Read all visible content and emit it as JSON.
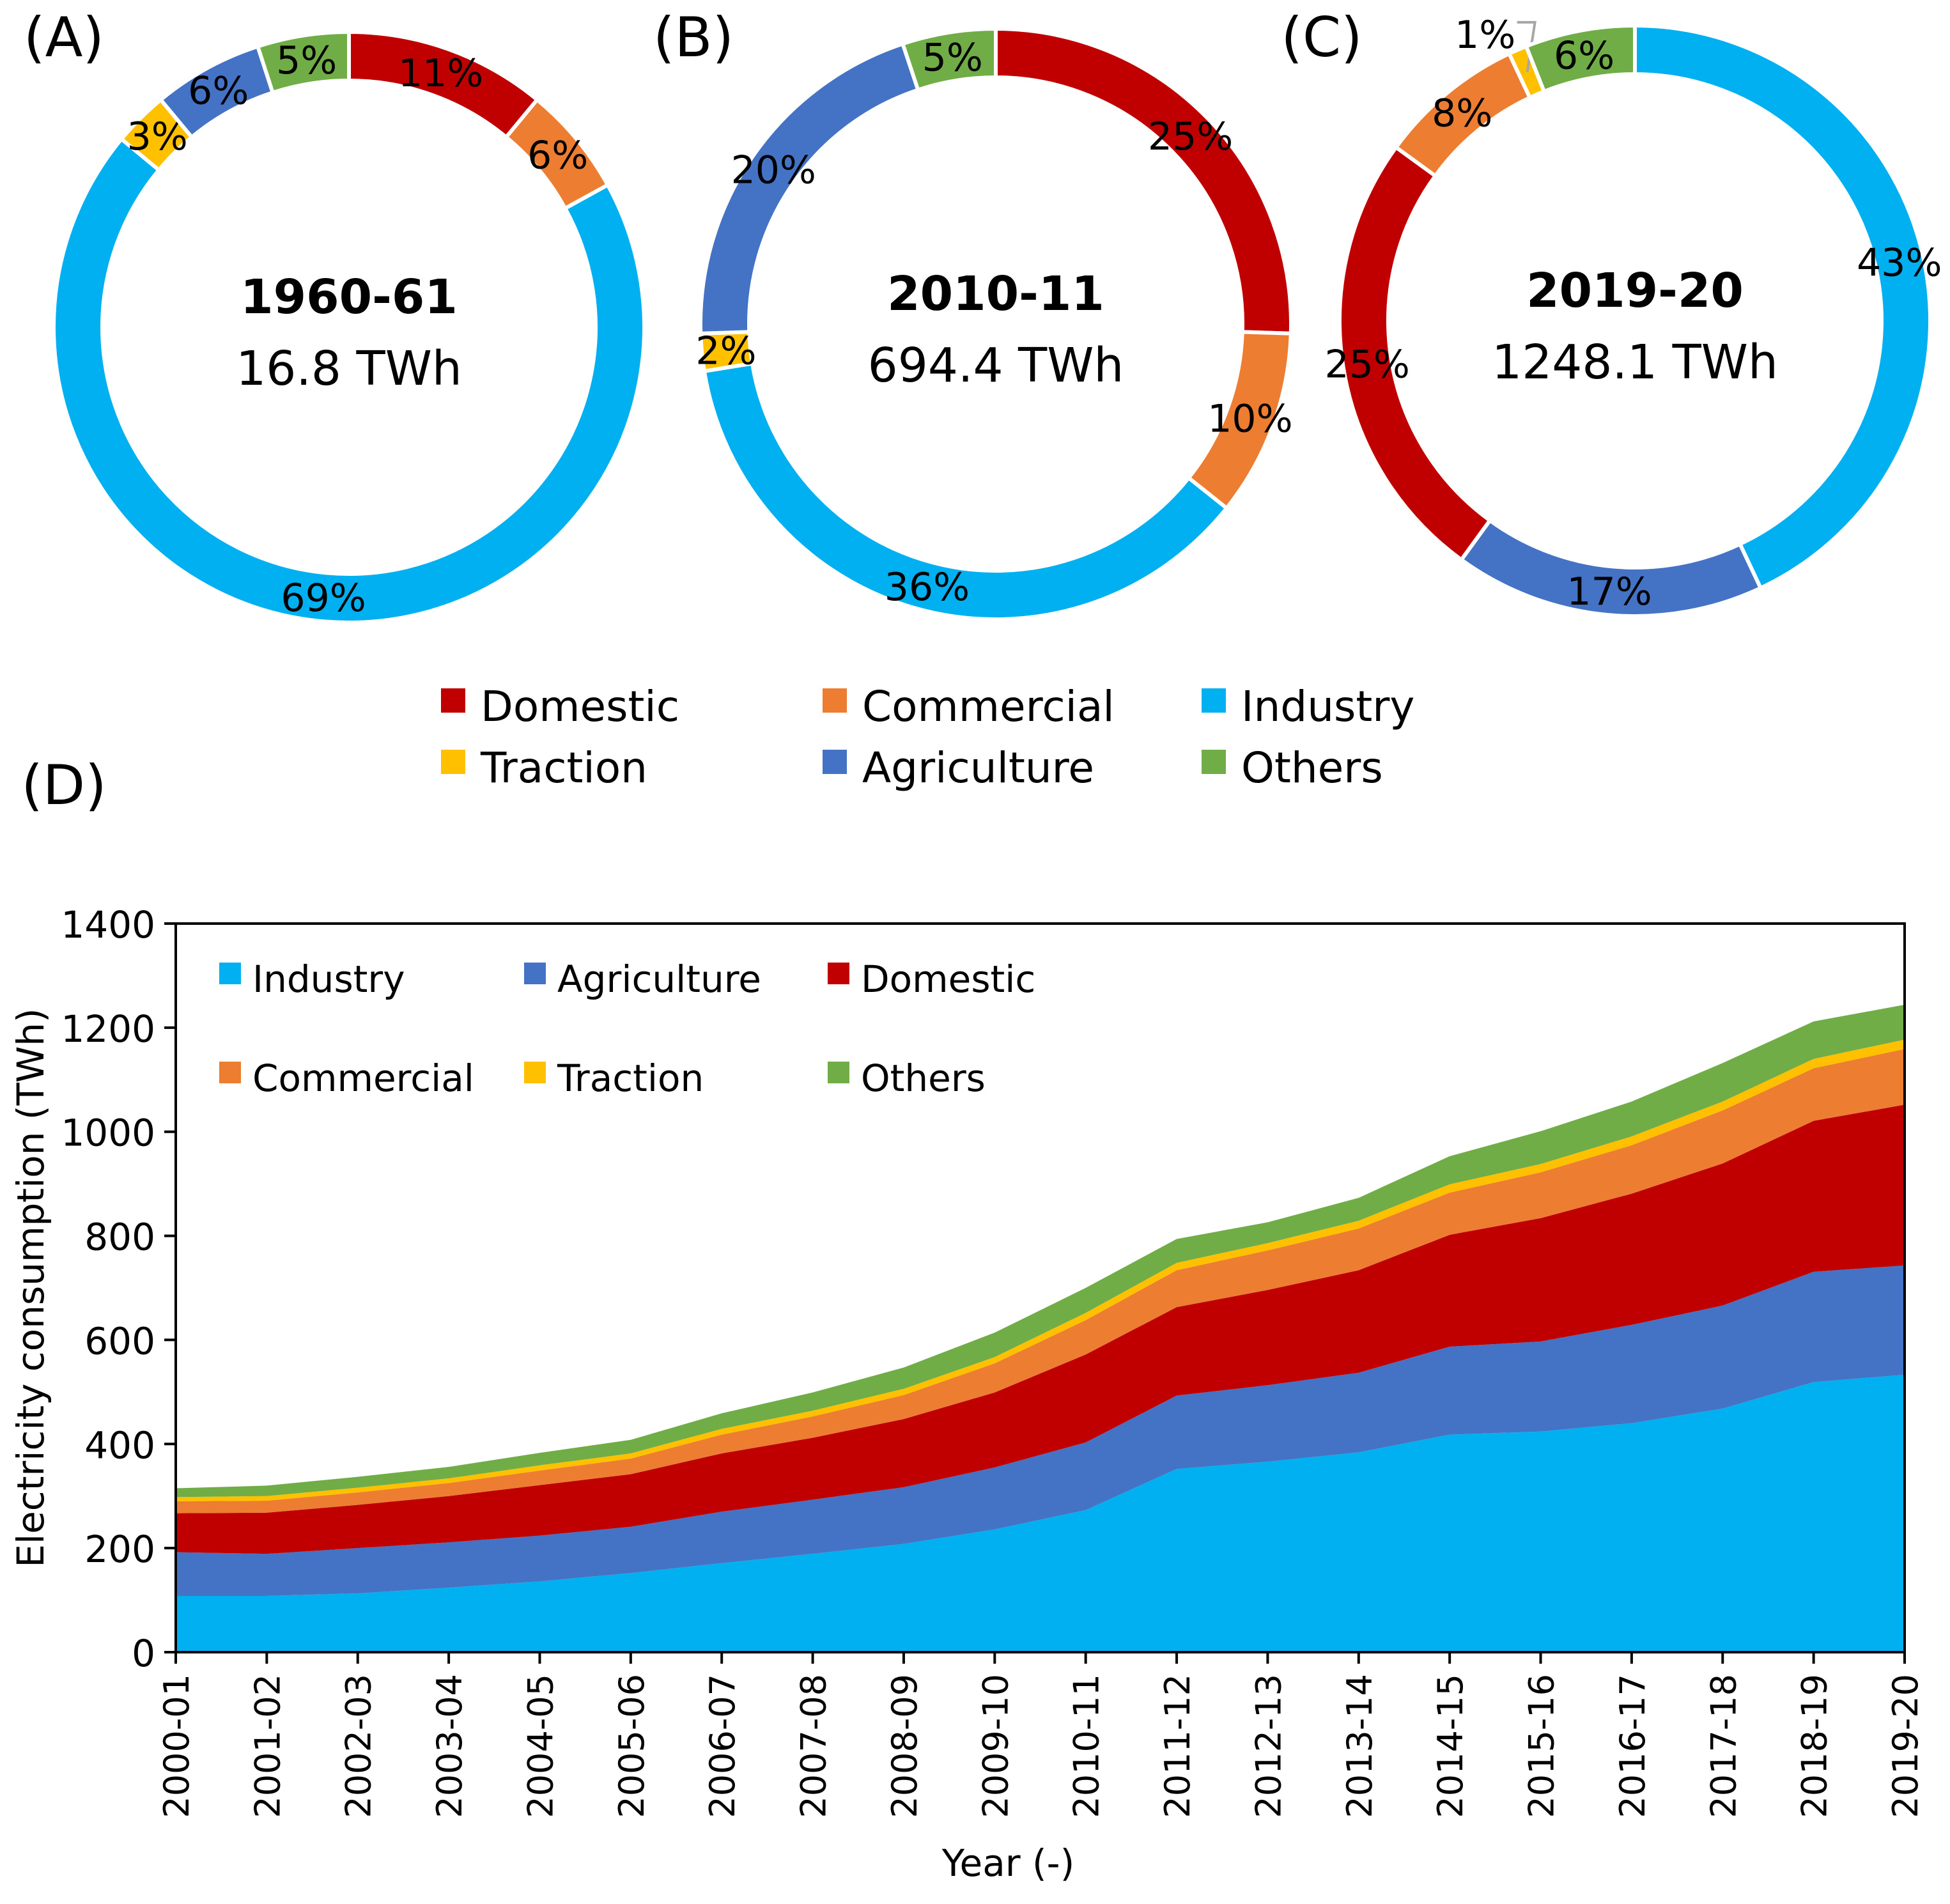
{
  "colors": {
    "Domestic": "#C00000",
    "Commercial": "#ED7D31",
    "Industry": "#00B0F0",
    "Traction": "#FFC000",
    "Agriculture": "#4472C4",
    "Others": "#70AD47"
  },
  "legend_top": {
    "items": [
      {
        "label": "Domestic",
        "key": "Domestic"
      },
      {
        "label": "Commercial",
        "key": "Commercial"
      },
      {
        "label": "Industry",
        "key": "Industry"
      },
      {
        "label": "Traction",
        "key": "Traction"
      },
      {
        "label": "Agriculture",
        "key": "Agriculture"
      },
      {
        "label": "Others",
        "key": "Others"
      }
    ]
  },
  "chart_data": [
    {
      "type": "pie",
      "panel_label": "(A)",
      "center_title": "1960-61",
      "center_total": "16.8 TWh",
      "slices": [
        {
          "category": "Domestic",
          "value": 11,
          "label": "11%"
        },
        {
          "category": "Commercial",
          "value": 6,
          "label": "6%"
        },
        {
          "category": "Industry",
          "value": 69,
          "label": "69%"
        },
        {
          "category": "Traction",
          "value": 3,
          "label": "3%"
        },
        {
          "category": "Agriculture",
          "value": 6,
          "label": "6%"
        },
        {
          "category": "Others",
          "value": 5,
          "label": "5%"
        }
      ]
    },
    {
      "type": "pie",
      "panel_label": "(B)",
      "center_title": "2010-11",
      "center_total": "694.4 TWh",
      "slices": [
        {
          "category": "Domestic",
          "value": 25,
          "label": "25%"
        },
        {
          "category": "Commercial",
          "value": 10,
          "label": "10%"
        },
        {
          "category": "Industry",
          "value": 36,
          "label": "36%"
        },
        {
          "category": "Traction",
          "value": 2,
          "label": "2%"
        },
        {
          "category": "Agriculture",
          "value": 20,
          "label": "20%"
        },
        {
          "category": "Others",
          "value": 5,
          "label": "5%"
        }
      ]
    },
    {
      "type": "pie",
      "panel_label": "(C)",
      "center_title": "2019-20",
      "center_total": "1248.1 TWh",
      "slices": [
        {
          "category": "Industry",
          "value": 43,
          "label": "43%"
        },
        {
          "category": "Agriculture",
          "value": 17,
          "label": "17%"
        },
        {
          "category": "Domestic",
          "value": 25,
          "label": "25%"
        },
        {
          "category": "Commercial",
          "value": 8,
          "label": "8%"
        },
        {
          "category": "Traction",
          "value": 1,
          "label": "1%"
        },
        {
          "category": "Others",
          "value": 6,
          "label": "6%"
        }
      ]
    },
    {
      "type": "area",
      "stacked": true,
      "panel_label": "(D)",
      "xlabel": "Year (-)",
      "ylabel": "Electricity consumption (TWh)",
      "ylim": [
        0,
        1400
      ],
      "yticks": [
        0,
        200,
        400,
        600,
        800,
        1000,
        1200,
        1400
      ],
      "grid": false,
      "legend_position": "top-left",
      "legend_order": [
        "Industry",
        "Agriculture",
        "Domestic",
        "Commercial",
        "Traction",
        "Others"
      ],
      "categories": [
        "2000-01",
        "2001-02",
        "2002-03",
        "2003-04",
        "2004-05",
        "2005-06",
        "2006-07",
        "2007-08",
        "2008-09",
        "2009-10",
        "2010-11",
        "2011-12",
        "2012-13",
        "2013-14",
        "2014-15",
        "2015-16",
        "2016-17",
        "2017-18",
        "2018-19",
        "2019-20"
      ],
      "series": [
        {
          "name": "Industry",
          "values": [
            108,
            108,
            113,
            124,
            136,
            152,
            171,
            189,
            208,
            236,
            273,
            352,
            366,
            384,
            418,
            424,
            440,
            468,
            519,
            533
          ]
        },
        {
          "name": "Agriculture",
          "values": [
            84,
            81,
            87,
            87,
            88,
            89,
            99,
            104,
            109,
            119,
            130,
            141,
            147,
            153,
            169,
            173,
            189,
            198,
            212,
            210
          ]
        },
        {
          "name": "Domestic",
          "values": [
            75,
            79,
            83,
            89,
            97,
            101,
            112,
            119,
            131,
            144,
            169,
            170,
            183,
            197,
            215,
            237,
            252,
            273,
            290,
            309
          ]
        },
        {
          "name": "Commercial",
          "values": [
            23,
            23,
            24,
            25,
            28,
            30,
            36,
            41,
            46,
            56,
            66,
            71,
            76,
            80,
            81,
            88,
            93,
            102,
            101,
            107
          ]
        },
        {
          "name": "Traction",
          "values": [
            8,
            9,
            9,
            9,
            10,
            10,
            11,
            11,
            12,
            12,
            14,
            14,
            14,
            15,
            16,
            16,
            17,
            17,
            18,
            18
          ]
        },
        {
          "name": "Others",
          "values": [
            17,
            20,
            21,
            22,
            24,
            26,
            30,
            35,
            41,
            47,
            48,
            46,
            40,
            44,
            54,
            63,
            67,
            74,
            72,
            67
          ]
        }
      ]
    }
  ]
}
